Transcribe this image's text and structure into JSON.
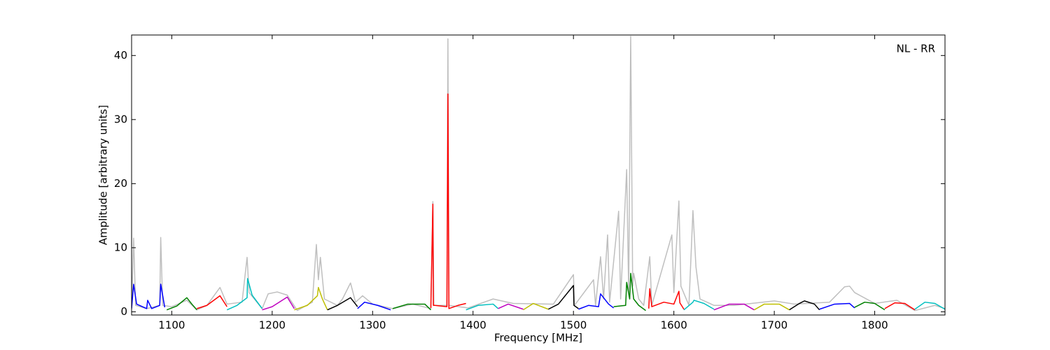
{
  "chart_data": {
    "type": "line",
    "annotation": "NL - RR",
    "xlabel": "Frequency [MHz]",
    "ylabel": "Amplitude [arbitrary units]",
    "xlim": [
      1060,
      1870
    ],
    "ylim": [
      -0.5,
      43.2
    ],
    "xticks": [
      1100,
      1200,
      1300,
      1400,
      1500,
      1600,
      1700,
      1800
    ],
    "yticks": [
      0,
      10,
      20,
      30,
      40
    ],
    "series": [
      {
        "color": "#bfbfbf",
        "x": [
          1060,
          1062,
          1064,
          1075,
          1088,
          1089,
          1091,
          1100,
          1115,
          1125,
          1135,
          1148,
          1155,
          1170,
          1175,
          1177,
          1190,
          1196,
          1205,
          1215,
          1225,
          1240,
          1244,
          1246,
          1248,
          1252,
          1265,
          1270,
          1278,
          1283,
          1290,
          1300,
          1320,
          1340,
          1358,
          1360,
          1361,
          1374,
          1375,
          1376,
          1395,
          1420,
          1440,
          1480,
          1500,
          1501,
          1520,
          1522,
          1527,
          1530,
          1534,
          1536,
          1545,
          1547,
          1553,
          1555,
          1557,
          1559,
          1560,
          1565,
          1570,
          1576,
          1578,
          1598,
          1600,
          1605,
          1607,
          1615,
          1619,
          1622,
          1626,
          1640,
          1660,
          1700,
          1720,
          1755,
          1770,
          1775,
          1780,
          1800,
          1822,
          1840,
          1860,
          1870
        ],
        "values": [
          0.5,
          11.5,
          1,
          0.5,
          1,
          11.6,
          1,
          0.8,
          1.8,
          0.3,
          1,
          3.8,
          1.2,
          1.5,
          8.5,
          3,
          0.5,
          2.8,
          3.1,
          2.6,
          0.2,
          1.5,
          10.5,
          5,
          8.5,
          2,
          1,
          2,
          4.5,
          1.5,
          2.5,
          1.2,
          0.5,
          1.2,
          0.5,
          17.2,
          1,
          1,
          42.6,
          1,
          0.6,
          2,
          1.3,
          1.2,
          5.8,
          1,
          5,
          1,
          8.6,
          2,
          12,
          1.5,
          15.7,
          2,
          22.2,
          3,
          43,
          4,
          6,
          2,
          1,
          8.6,
          1,
          12,
          3,
          17.3,
          4,
          1,
          15.8,
          7,
          2,
          1,
          1,
          1.7,
          1.2,
          1.5,
          3.9,
          4,
          3,
          1.3,
          1.8,
          0.2,
          1,
          0.5
        ]
      },
      {
        "color": "#0000ff",
        "x": [
          1060,
          1062,
          1065,
          1075,
          1076,
          1080,
          1088,
          1089,
          1093
        ],
        "values": [
          0.5,
          4.3,
          1.2,
          0.5,
          1.8,
          0.5,
          1,
          4.3,
          0.7
        ]
      },
      {
        "color": "#008000",
        "x": [
          1095,
          1105,
          1115,
          1120,
          1125
        ],
        "values": [
          0.3,
          0.9,
          2.2,
          1.2,
          0.3
        ]
      },
      {
        "color": "#ff0000",
        "x": [
          1125,
          1135,
          1148,
          1155
        ],
        "values": [
          0.5,
          1,
          2.5,
          0.8
        ]
      },
      {
        "color": "#00bfbf",
        "x": [
          1155,
          1165,
          1175,
          1175.5,
          1180,
          1190
        ],
        "values": [
          0.3,
          1,
          2.2,
          5.2,
          2.6,
          0.5
        ]
      },
      {
        "color": "#bf00bf",
        "x": [
          1190,
          1200,
          1215,
          1222
        ],
        "values": [
          0.3,
          0.8,
          2.3,
          0.5
        ]
      },
      {
        "color": "#bfbf00",
        "x": [
          1222,
          1235,
          1245,
          1246,
          1250,
          1255
        ],
        "values": [
          0.3,
          1,
          2.5,
          3.8,
          2,
          0.3
        ]
      },
      {
        "color": "#000000",
        "x": [
          1255,
          1265,
          1278,
          1285
        ],
        "values": [
          0.3,
          1,
          2.2,
          0.8
        ]
      },
      {
        "color": "#0000ff",
        "x": [
          1285,
          1292,
          1305,
          1318
        ],
        "values": [
          0.5,
          1.5,
          1,
          0.3
        ]
      },
      {
        "color": "#008000",
        "x": [
          1320,
          1335,
          1352,
          1358
        ],
        "values": [
          0.5,
          1.2,
          1.2,
          0.3
        ]
      },
      {
        "color": "#ff0000",
        "x": [
          1358,
          1360,
          1360.5,
          1362,
          1374,
          1375,
          1376,
          1385,
          1393
        ],
        "values": [
          0.6,
          16.8,
          1,
          1,
          0.8,
          34,
          0.5,
          1,
          1.3
        ]
      },
      {
        "color": "#00bfbf",
        "x": [
          1393,
          1405,
          1420,
          1425
        ],
        "values": [
          0.3,
          1,
          1.2,
          0.5
        ]
      },
      {
        "color": "#bf00bf",
        "x": [
          1425,
          1435,
          1450
        ],
        "values": [
          0.5,
          1.2,
          0.4
        ]
      },
      {
        "color": "#bfbf00",
        "x": [
          1450,
          1460,
          1475
        ],
        "values": [
          0.3,
          1.3,
          0.4
        ]
      },
      {
        "color": "#000000",
        "x": [
          1475,
          1485,
          1500,
          1500.5,
          1505
        ],
        "values": [
          0.4,
          1.2,
          4.1,
          1,
          0.5
        ]
      },
      {
        "color": "#0000ff",
        "x": [
          1505,
          1515,
          1525,
          1527,
          1535,
          1540
        ],
        "values": [
          0.4,
          1,
          0.8,
          2.8,
          1.2,
          0.6
        ]
      },
      {
        "color": "#008000",
        "x": [
          1540,
          1552,
          1553,
          1556,
          1557,
          1560,
          1565,
          1572
        ],
        "values": [
          0.8,
          1,
          4.6,
          2,
          6,
          2,
          1,
          0.2
        ]
      },
      {
        "color": "#ff0000",
        "x": [
          1575,
          1576,
          1578,
          1590,
          1600,
          1605,
          1606,
          1610
        ],
        "values": [
          0.5,
          3.6,
          0.8,
          1.5,
          1.2,
          3.2,
          1.4,
          0.4
        ]
      },
      {
        "color": "#00bfbf",
        "x": [
          1610,
          1619,
          1620,
          1630,
          1640
        ],
        "values": [
          0.3,
          1.5,
          1.8,
          1.3,
          0.4
        ]
      },
      {
        "color": "#bf00bf",
        "x": [
          1640,
          1655,
          1670,
          1680
        ],
        "values": [
          0.3,
          1.2,
          1.2,
          0.3
        ]
      },
      {
        "color": "#bfbf00",
        "x": [
          1680,
          1690,
          1705,
          1715
        ],
        "values": [
          0.3,
          1.2,
          1.2,
          0.3
        ]
      },
      {
        "color": "#000000",
        "x": [
          1715,
          1725,
          1730,
          1740,
          1745
        ],
        "values": [
          0.3,
          1.3,
          1.7,
          1.2,
          0.3
        ]
      },
      {
        "color": "#0000ff",
        "x": [
          1745,
          1760,
          1775,
          1780
        ],
        "values": [
          0.4,
          1.2,
          1.3,
          0.6
        ]
      },
      {
        "color": "#008000",
        "x": [
          1780,
          1790,
          1800,
          1810
        ],
        "values": [
          0.7,
          1.5,
          1.3,
          0.3
        ]
      },
      {
        "color": "#ff0000",
        "x": [
          1810,
          1820,
          1830,
          1840
        ],
        "values": [
          0.5,
          1.4,
          1.3,
          0.3
        ]
      },
      {
        "color": "#00bfbf",
        "x": [
          1840,
          1850,
          1860,
          1870
        ],
        "values": [
          0.4,
          1.5,
          1.3,
          0.4
        ]
      }
    ]
  }
}
